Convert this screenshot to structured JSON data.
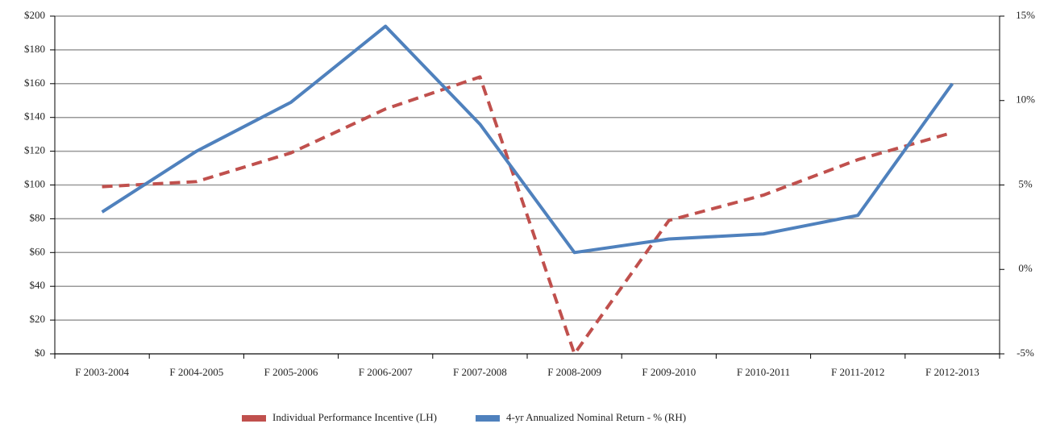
{
  "chart_data": {
    "type": "line",
    "categories": [
      "F 2003-2004",
      "F 2004-2005",
      "F 2005-2006",
      "F 2006-2007",
      "F 2007-2008",
      "F 2008-2009",
      "F 2009-2010",
      "F 2010-2011",
      "F 2011-2012",
      "F 2012-2013"
    ],
    "series": [
      {
        "name": "Individual Performance Incentive (LH)",
        "color": "#c0504d",
        "dashed": true,
        "axis": "y",
        "values": [
          99,
          102,
          119,
          145,
          164,
          0,
          79,
          94,
          115,
          131
        ]
      },
      {
        "name": "4-yr Annualized Nominal Return - % (RH)",
        "color": "#4f81bd",
        "dashed": false,
        "axis": "y2",
        "values": [
          3.4,
          7.0,
          9.9,
          14.4,
          8.6,
          1.0,
          1.8,
          2.1,
          3.2,
          11.0
        ]
      }
    ],
    "ylim": [
      0,
      200
    ],
    "yticks": [
      {
        "value": 0,
        "label": "$0"
      },
      {
        "value": 20,
        "label": "$20"
      },
      {
        "value": 40,
        "label": "$40"
      },
      {
        "value": 60,
        "label": "$60"
      },
      {
        "value": 80,
        "label": "$80"
      },
      {
        "value": 100,
        "label": "$100"
      },
      {
        "value": 120,
        "label": "$120"
      },
      {
        "value": 140,
        "label": "$140"
      },
      {
        "value": 160,
        "label": "$160"
      },
      {
        "value": 180,
        "label": "$180"
      },
      {
        "value": 200,
        "label": "$200"
      }
    ],
    "y2lim": [
      -5,
      15
    ],
    "y2ticks": [
      {
        "value": -5,
        "label": "-5%"
      },
      {
        "value": 0,
        "label": "0%"
      },
      {
        "value": 5,
        "label": "5%"
      },
      {
        "value": 10,
        "label": "10%"
      },
      {
        "value": 15,
        "label": "15%"
      }
    ],
    "grid": true,
    "legend": "bottom"
  }
}
